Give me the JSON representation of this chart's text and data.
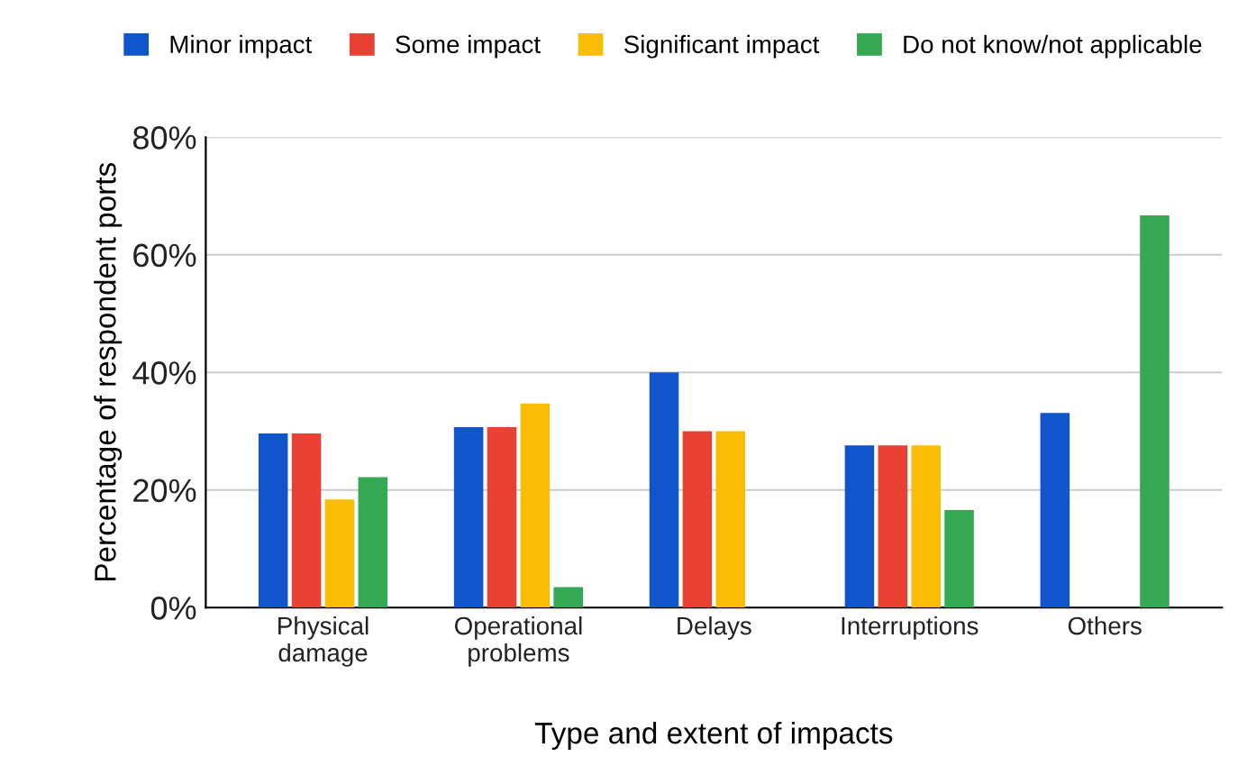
{
  "chart_data": {
    "type": "bar",
    "xlabel": "Type and extent of impacts",
    "ylabel": "Percentage of respondent ports",
    "categories": [
      "Physical\ndamage",
      "Operational\nproblems",
      "Delays",
      "Interruptions",
      "Others"
    ],
    "series": [
      {
        "name": "Minor impact",
        "color": "#1155cc",
        "values": [
          29.6,
          30.7,
          40,
          27.6,
          33.1
        ]
      },
      {
        "name": "Some impact",
        "color": "#e94235",
        "values": [
          29.6,
          30.7,
          30,
          27.6,
          null
        ]
      },
      {
        "name": "Significant impact",
        "color": "#fbbc04",
        "values": [
          18.4,
          34.7,
          30,
          27.6,
          null
        ]
      },
      {
        "name": "Do not know/not applicable",
        "color": "#34a853",
        "values": [
          22.2,
          3.5,
          null,
          16.6,
          66.7
        ]
      }
    ],
    "ylim": [
      0,
      80
    ],
    "yticks": [
      {
        "value": 0,
        "label": "0%"
      },
      {
        "value": 20,
        "label": "20%"
      },
      {
        "value": 40,
        "label": "40%"
      },
      {
        "value": 60,
        "label": "60%"
      },
      {
        "value": 80,
        "label": "80%"
      }
    ],
    "grid": "y",
    "legend": "top"
  }
}
